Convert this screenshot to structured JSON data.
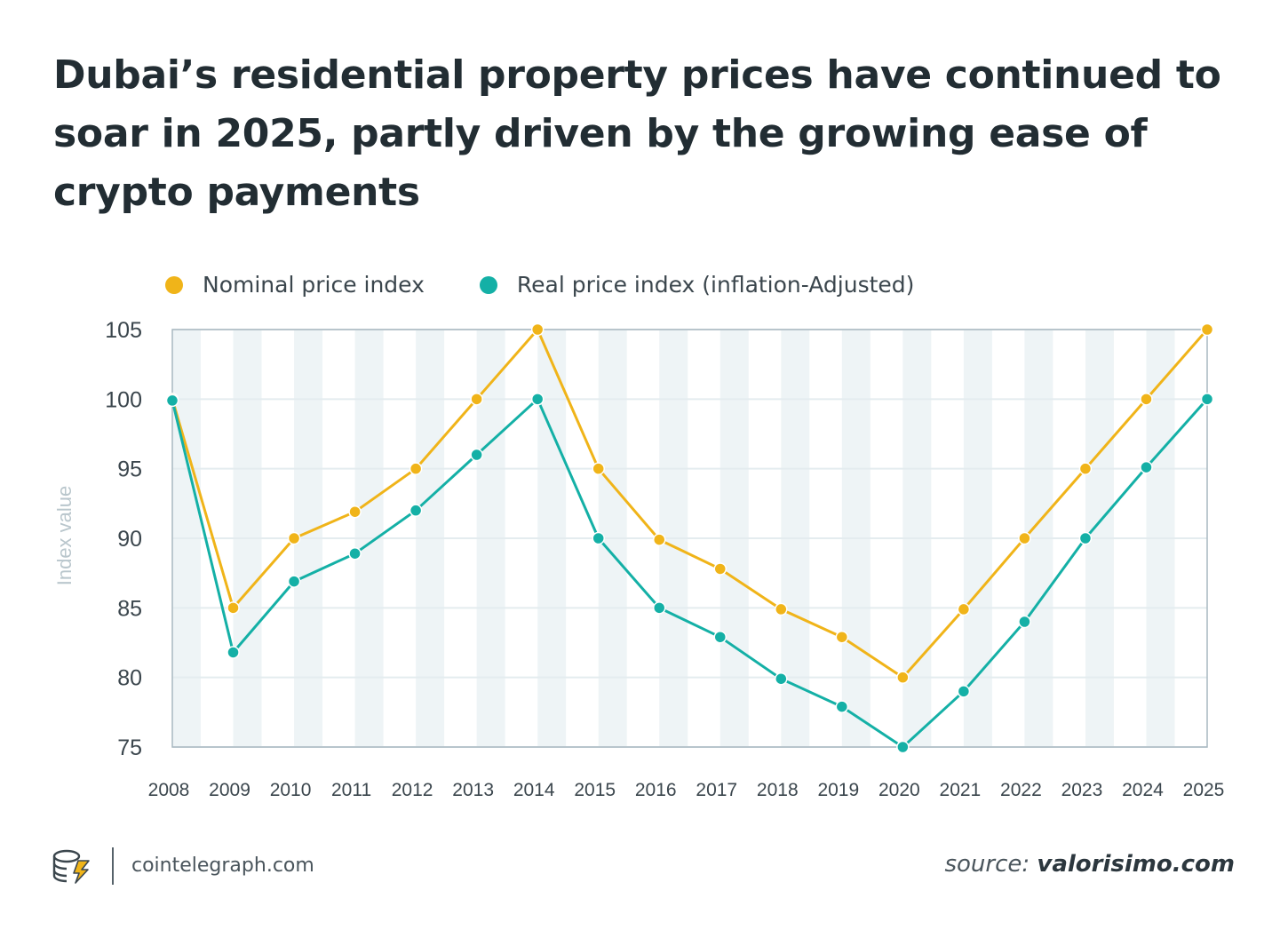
{
  "header": {
    "title": "Dubai’s residential property prices have continued to soar in 2025, partly driven by the growing ease of crypto payments"
  },
  "footer": {
    "site": "cointelegraph.com",
    "source_label": "source:",
    "source_site": "valorisimo.com",
    "logo_icon": "cointelegraph-coin-bolt-icon"
  },
  "colors": {
    "nominal": "#f0b419",
    "real": "#14b0a6",
    "band": "#eef4f6",
    "grid": "#e4ecef",
    "axis_text": "#3b464d",
    "ylabel": "#b9c6cc"
  },
  "chart_data": {
    "type": "line",
    "title": "Dubai’s residential property prices have continued to soar in 2025, partly driven by the growing ease of crypto payments",
    "xlabel": "",
    "ylabel": "Index value",
    "x": [
      "2008",
      "2009",
      "2010",
      "2011",
      "2012",
      "2013",
      "2014",
      "2015",
      "2016",
      "2017",
      "2018",
      "2019",
      "2020",
      "2021",
      "2022",
      "2023",
      "2024",
      "2025"
    ],
    "ylim": [
      75,
      105
    ],
    "yticks": [
      75,
      80,
      85,
      90,
      95,
      100,
      105
    ],
    "grid": true,
    "legend_position": "top-left",
    "series": [
      {
        "name": "Nominal price index",
        "color": "#f0b419",
        "values": [
          100,
          85,
          90,
          91.9,
          95,
          100,
          105,
          95,
          89.9,
          87.8,
          84.9,
          82.9,
          80,
          84.9,
          90,
          95,
          100,
          105
        ]
      },
      {
        "name": "Real price index (inflation-Adjusted)",
        "color": "#14b0a6",
        "values": [
          99.9,
          81.8,
          86.9,
          88.9,
          92,
          96,
          100,
          90,
          85,
          82.9,
          79.9,
          77.9,
          75,
          79,
          84,
          90,
          95.1,
          100
        ]
      }
    ]
  }
}
